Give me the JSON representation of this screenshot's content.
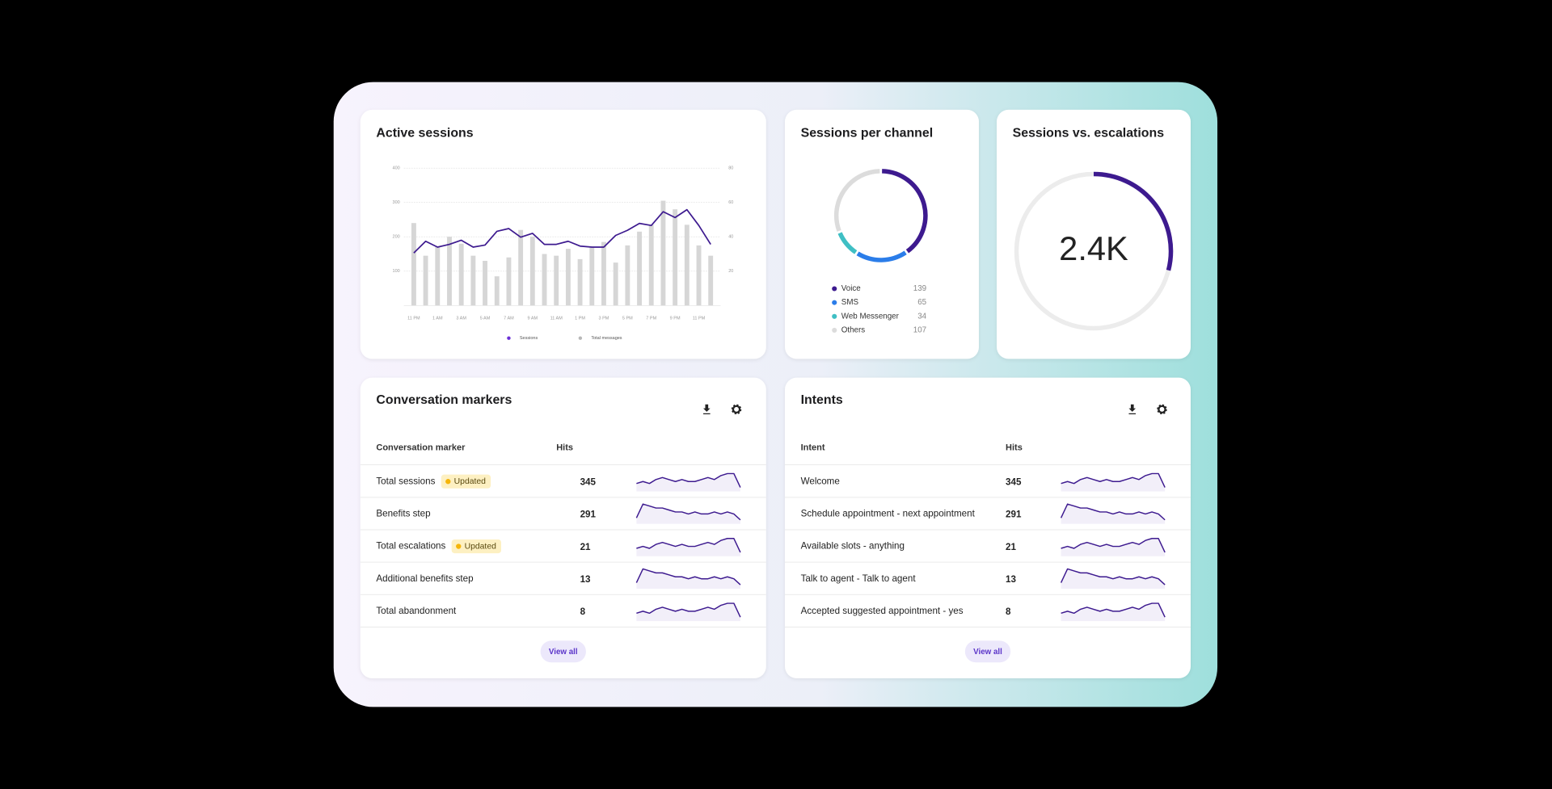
{
  "chart_data": [
    {
      "type": "combo",
      "title": "Active sessions",
      "categories": [
        "11 PM",
        null,
        "1 AM",
        null,
        "3 AM",
        null,
        "5 AM",
        null,
        "7 AM",
        null,
        "9 AM",
        null,
        "11 AM",
        null,
        "1 PM",
        null,
        "3 PM",
        null,
        "5 PM",
        null,
        "7 PM",
        null,
        "9 PM",
        null,
        "11 PM",
        null
      ],
      "series": [
        {
          "name": "Sessions",
          "type": "line",
          "color": "#3d1a8f",
          "values": [
            153,
            187,
            170,
            178,
            190,
            170,
            176,
            216,
            224,
            199,
            210,
            178,
            178,
            187,
            173,
            170,
            170,
            204,
            219,
            239,
            233,
            273,
            256,
            279,
            233,
            178
          ]
        },
        {
          "name": "Total messages",
          "type": "bar",
          "color": "#d6d6d6",
          "axis": "y2",
          "values": [
            48,
            29,
            34,
            40,
            36,
            29,
            26,
            17,
            28,
            44,
            40,
            30,
            29,
            33,
            27,
            34,
            37,
            25,
            35,
            43,
            47,
            61,
            56,
            47,
            35,
            29
          ]
        }
      ],
      "ylim": [
        0,
        400
      ],
      "yticks": [
        100,
        200,
        300,
        400
      ],
      "y2lim": [
        0,
        80
      ],
      "y2ticks": [
        20,
        40,
        60,
        80
      ],
      "grid": true
    },
    {
      "type": "donut",
      "title": "Sessions per channel",
      "categories": [
        "Voice",
        "SMS",
        "Web Messenger",
        "Others"
      ],
      "values": [
        139,
        65,
        34,
        107
      ],
      "colors": [
        "#3d1a8f",
        "#2b7de9",
        "#3fbfc4",
        "#dcdcdc"
      ]
    },
    {
      "type": "gauge",
      "title": "Sessions vs. escalations",
      "center_label": "2.4K",
      "percent": 29,
      "color": "#3d1a8f"
    }
  ],
  "tables": [
    {
      "title": "Conversation markers",
      "columns": [
        "Conversation marker",
        "Hits"
      ],
      "button": "View all",
      "rows": [
        {
          "label": "Total sessions",
          "badge": "Updated",
          "hits": 345,
          "trend": [
            4,
            5,
            4,
            6,
            7,
            6,
            5,
            6,
            5,
            5,
            6,
            7,
            6,
            8,
            9,
            9,
            2
          ]
        },
        {
          "label": "Benefits step",
          "hits": 291,
          "trend": [
            3,
            10,
            9,
            8,
            8,
            7,
            6,
            6,
            5,
            6,
            5,
            5,
            6,
            5,
            6,
            5,
            2
          ]
        },
        {
          "label": "Total escalations",
          "badge": "Updated",
          "hits": 21,
          "trend": [
            4,
            5,
            4,
            6,
            7,
            6,
            5,
            6,
            5,
            5,
            6,
            7,
            6,
            8,
            9,
            9,
            2
          ]
        },
        {
          "label": "Additional benefits step",
          "hits": 13,
          "trend": [
            3,
            10,
            9,
            8,
            8,
            7,
            6,
            6,
            5,
            6,
            5,
            5,
            6,
            5,
            6,
            5,
            2
          ]
        },
        {
          "label": "Total abandonment",
          "hits": 8,
          "trend": [
            4,
            5,
            4,
            6,
            7,
            6,
            5,
            6,
            5,
            5,
            6,
            7,
            6,
            8,
            9,
            9,
            2
          ]
        }
      ]
    },
    {
      "title": "Intents",
      "columns": [
        "Intent",
        "Hits"
      ],
      "button": "View all",
      "rows": [
        {
          "label": "Welcome",
          "hits": 345,
          "trend": [
            4,
            5,
            4,
            6,
            7,
            6,
            5,
            6,
            5,
            5,
            6,
            7,
            6,
            8,
            9,
            9,
            2
          ]
        },
        {
          "label": "Schedule appointment - next appointment",
          "hits": 291,
          "trend": [
            3,
            10,
            9,
            8,
            8,
            7,
            6,
            6,
            5,
            6,
            5,
            5,
            6,
            5,
            6,
            5,
            2
          ]
        },
        {
          "label": "Available slots - anything",
          "hits": 21,
          "trend": [
            4,
            5,
            4,
            6,
            7,
            6,
            5,
            6,
            5,
            5,
            6,
            7,
            6,
            8,
            9,
            9,
            2
          ]
        },
        {
          "label": "Talk to agent - Talk to agent",
          "hits": 13,
          "trend": [
            3,
            10,
            9,
            8,
            8,
            7,
            6,
            6,
            5,
            6,
            5,
            5,
            6,
            5,
            6,
            5,
            2
          ]
        },
        {
          "label": "Accepted suggested appointment - yes",
          "hits": 8,
          "trend": [
            4,
            5,
            4,
            6,
            7,
            6,
            5,
            6,
            5,
            5,
            6,
            7,
            6,
            8,
            9,
            9,
            2
          ]
        }
      ]
    }
  ]
}
